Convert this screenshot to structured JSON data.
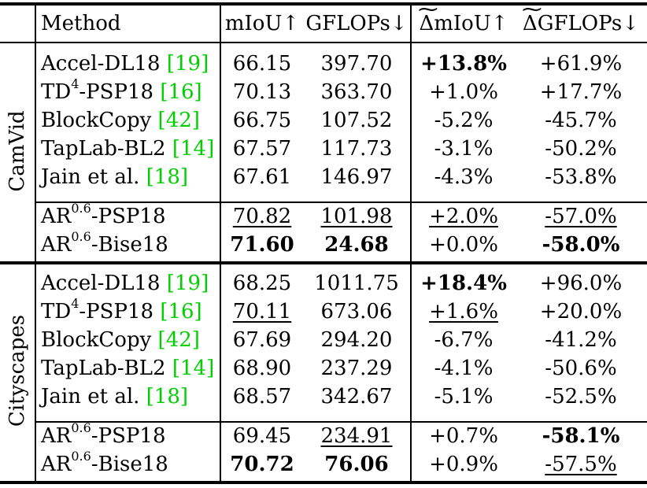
{
  "columns": {
    "method": "Method",
    "miou": "mIoU↑",
    "gflops": "GFLOPs↓",
    "dmiou": "mIoU↑",
    "dgflops": "GFLOPs↓",
    "delta_symbol": "Δ"
  },
  "groups": [
    {
      "dataset": "CamVid",
      "rows": [
        {
          "name": "Accel-DL18 ",
          "cite": "[19]",
          "sup": "",
          "suffix": "",
          "miou": "66.15",
          "gflops": "397.70",
          "dmiou": "+13.8%",
          "dgflops": "+61.9%",
          "style": {
            "dmiou": "b"
          }
        },
        {
          "name": "TD",
          "sup": "4",
          "suffix": "-PSP18 ",
          "cite": "[16]",
          "miou": "70.13",
          "gflops": "363.70",
          "dmiou": "+1.0%",
          "dgflops": "+17.7%",
          "style": {}
        },
        {
          "name": "BlockCopy ",
          "cite": "[42]",
          "sup": "",
          "suffix": "",
          "miou": "66.75",
          "gflops": "107.52",
          "dmiou": "-5.2%",
          "dgflops": "-45.7%",
          "style": {}
        },
        {
          "name": "TapLab-BL2 ",
          "cite": "[14]",
          "sup": "",
          "suffix": "",
          "miou": "67.57",
          "gflops": "117.73",
          "dmiou": "-3.1%",
          "dgflops": "-50.2%",
          "style": {}
        },
        {
          "name": "Jain et al. ",
          "cite": "[18]",
          "sup": "",
          "suffix": "",
          "miou": "67.61",
          "gflops": "146.97",
          "dmiou": "-4.3%",
          "dgflops": "-53.8%",
          "style": {}
        },
        {
          "name": "AR",
          "sup": "0.6",
          "suffix": "-PSP18",
          "cite": "",
          "miou": "70.82",
          "gflops": "101.98",
          "dmiou": "+2.0%",
          "dgflops": "-57.0%",
          "style": {
            "miou": "u",
            "gflops": "u",
            "dmiou": "u",
            "dgflops": "u"
          }
        },
        {
          "name": "AR",
          "sup": "0.6",
          "suffix": "-Bise18",
          "cite": "",
          "miou": "71.60",
          "gflops": "24.68",
          "dmiou": "+0.0%",
          "dgflops": "-58.0%",
          "style": {
            "miou": "b",
            "gflops": "b",
            "dgflops": "b"
          }
        }
      ]
    },
    {
      "dataset": "Cityscapes",
      "rows": [
        {
          "name": "Accel-DL18 ",
          "cite": "[19]",
          "sup": "",
          "suffix": "",
          "miou": "68.25",
          "gflops": "1011.75",
          "dmiou": "+18.4%",
          "dgflops": "+96.0%",
          "style": {
            "dmiou": "b"
          }
        },
        {
          "name": "TD",
          "sup": "4",
          "suffix": "-PSP18 ",
          "cite": "[16]",
          "miou": "70.11",
          "gflops": "673.06",
          "dmiou": "+1.6%",
          "dgflops": "+20.0%",
          "style": {
            "miou": "u",
            "dmiou": "u"
          }
        },
        {
          "name": "BlockCopy ",
          "cite": "[42]",
          "sup": "",
          "suffix": "",
          "miou": "67.69",
          "gflops": "294.20",
          "dmiou": "-6.7%",
          "dgflops": "-41.2%",
          "style": {}
        },
        {
          "name": "TapLab-BL2 ",
          "cite": "[14]",
          "sup": "",
          "suffix": "",
          "miou": "68.90",
          "gflops": "237.29",
          "dmiou": "-4.1%",
          "dgflops": "-50.6%",
          "style": {}
        },
        {
          "name": "Jain et al. ",
          "cite": "[18]",
          "sup": "",
          "suffix": "",
          "miou": "68.57",
          "gflops": "342.67",
          "dmiou": "-5.1%",
          "dgflops": "-52.5%",
          "style": {}
        },
        {
          "name": "AR",
          "sup": "0.6",
          "suffix": "-PSP18",
          "cite": "",
          "miou": "69.45",
          "gflops": "234.91",
          "dmiou": "+0.7%",
          "dgflops": "-58.1%",
          "style": {
            "gflops": "u",
            "dgflops": "b"
          }
        },
        {
          "name": "AR",
          "sup": "0.6",
          "suffix": "-Bise18",
          "cite": "",
          "miou": "70.72",
          "gflops": "76.06",
          "dmiou": "+0.9%",
          "dgflops": "-57.5%",
          "style": {
            "miou": "b",
            "gflops": "b",
            "dgflops": "u"
          }
        }
      ]
    }
  ]
}
